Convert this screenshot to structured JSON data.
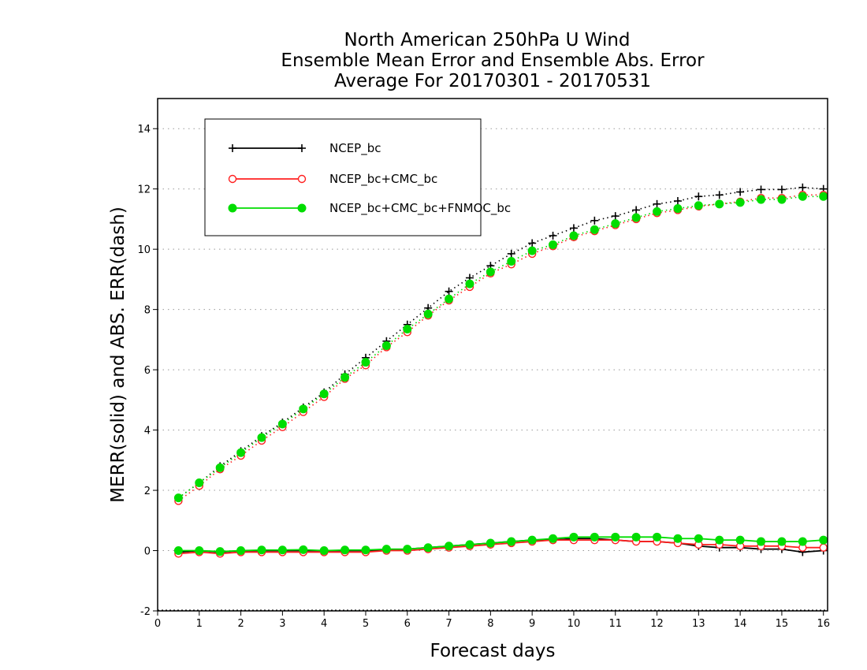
{
  "chart_data": {
    "type": "line",
    "title_lines": [
      "North American 250hPa U Wind",
      "Ensemble Mean Error and Ensemble Abs. Error",
      "Average For 20170301 - 20170531"
    ],
    "xlabel": "Forecast days",
    "ylabel": "MERR(solid) and ABS. ERR(dash)",
    "xlim": [
      0,
      16.1
    ],
    "ylim": [
      -2,
      15
    ],
    "x_ticks": [
      0,
      1,
      2,
      3,
      4,
      5,
      6,
      7,
      8,
      9,
      10,
      11,
      12,
      13,
      14,
      15,
      16
    ],
    "y_ticks": [
      -2,
      0,
      2,
      4,
      6,
      8,
      10,
      12,
      14
    ],
    "grid": "horizontal dotted",
    "legend_position": "top-left",
    "x": [
      0.5,
      1,
      1.5,
      2,
      2.5,
      3,
      3.5,
      4,
      4.5,
      5,
      5.5,
      6,
      6.5,
      7,
      7.5,
      8,
      8.5,
      9,
      9.5,
      10,
      10.5,
      11,
      11.5,
      12,
      12.5,
      13,
      13.5,
      14,
      14.5,
      15,
      15.5,
      16
    ],
    "series": [
      {
        "name": "NCEP_bc",
        "color": "#000000",
        "marker": "plus",
        "abs_err": [
          1.75,
          2.25,
          2.8,
          3.3,
          3.8,
          4.25,
          4.75,
          5.25,
          5.85,
          6.4,
          6.95,
          7.5,
          8.05,
          8.6,
          9.05,
          9.45,
          9.85,
          10.2,
          10.45,
          10.7,
          10.95,
          11.1,
          11.3,
          11.5,
          11.6,
          11.75,
          11.8,
          11.9,
          11.98,
          11.98,
          12.05,
          12.0
        ],
        "mean_err": [
          -0.05,
          0.0,
          -0.05,
          0.0,
          0.0,
          0.0,
          0.0,
          0.0,
          0.0,
          0.0,
          0.0,
          0.05,
          0.1,
          0.15,
          0.2,
          0.25,
          0.3,
          0.35,
          0.35,
          0.4,
          0.4,
          0.35,
          0.3,
          0.3,
          0.25,
          0.15,
          0.1,
          0.1,
          0.05,
          0.05,
          -0.05,
          0.0
        ]
      },
      {
        "name": "NCEP_bc+CMC_bc",
        "color": "#ff2020",
        "marker": "circle-open",
        "abs_err": [
          1.65,
          2.15,
          2.7,
          3.15,
          3.65,
          4.1,
          4.6,
          5.1,
          5.7,
          6.15,
          6.75,
          7.25,
          7.8,
          8.3,
          8.75,
          9.2,
          9.5,
          9.85,
          10.1,
          10.4,
          10.6,
          10.8,
          11.0,
          11.2,
          11.3,
          11.42,
          11.5,
          11.58,
          11.7,
          11.7,
          11.8,
          11.8
        ],
        "mean_err": [
          -0.1,
          -0.05,
          -0.1,
          -0.05,
          -0.05,
          -0.05,
          -0.05,
          -0.05,
          -0.05,
          -0.05,
          0.0,
          0.0,
          0.05,
          0.1,
          0.15,
          0.2,
          0.25,
          0.3,
          0.35,
          0.35,
          0.35,
          0.35,
          0.3,
          0.3,
          0.25,
          0.2,
          0.2,
          0.15,
          0.15,
          0.15,
          0.1,
          0.1
        ]
      },
      {
        "name": "NCEP_bc+CMC_bc+FNMOC_bc",
        "color": "#00dd00",
        "marker": "circle-filled",
        "abs_err": [
          1.75,
          2.25,
          2.75,
          3.25,
          3.75,
          4.2,
          4.7,
          5.2,
          5.75,
          6.25,
          6.8,
          7.35,
          7.85,
          8.35,
          8.85,
          9.25,
          9.6,
          9.95,
          10.15,
          10.45,
          10.65,
          10.85,
          11.05,
          11.25,
          11.35,
          11.45,
          11.5,
          11.55,
          11.65,
          11.65,
          11.75,
          11.75
        ],
        "mean_err": [
          0.0,
          0.0,
          -0.03,
          0.0,
          0.02,
          0.02,
          0.03,
          0.0,
          0.02,
          0.02,
          0.05,
          0.05,
          0.1,
          0.15,
          0.2,
          0.25,
          0.3,
          0.35,
          0.4,
          0.45,
          0.45,
          0.45,
          0.45,
          0.45,
          0.4,
          0.4,
          0.35,
          0.35,
          0.3,
          0.3,
          0.3,
          0.35
        ]
      }
    ]
  }
}
